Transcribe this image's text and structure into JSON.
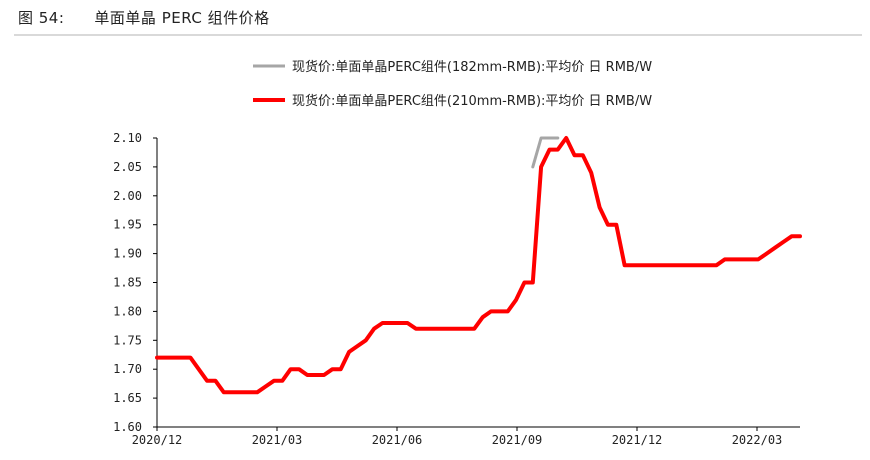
{
  "figure": {
    "number": "图 54:",
    "title": "单面单晶 PERC 组件价格"
  },
  "chart_data": {
    "type": "line",
    "title": "单面单晶 PERC 组件价格",
    "xlabel": "",
    "ylabel": "",
    "ylim": [
      1.6,
      2.1
    ],
    "yticks": [
      "1.60",
      "1.65",
      "1.70",
      "1.75",
      "1.80",
      "1.85",
      "1.90",
      "1.95",
      "2.00",
      "2.05",
      "2.10"
    ],
    "xticks": [
      "2020/12",
      "2021/03",
      "2021/06",
      "2021/09",
      "2021/12",
      "2022/03"
    ],
    "xlim": [
      0,
      77
    ],
    "grid": false,
    "legend_position": "top-right",
    "series": [
      {
        "name": "现货价:单面单晶PERC组件(182mm-RMB):平均价 日 RMB/W",
        "color": "#a6a6a6",
        "x": [
          45,
          46,
          47,
          48
        ],
        "y": [
          2.05,
          2.1,
          2.1,
          2.1
        ]
      },
      {
        "name": "现货价:单面单晶PERC组件(210mm-RMB):平均价 日 RMB/W",
        "color": "#ff0000",
        "x": [
          0,
          4,
          6,
          7,
          8,
          12,
          13,
          14,
          15,
          16,
          17,
          18,
          20,
          21,
          22,
          23,
          24,
          25,
          26,
          27,
          28,
          30,
          31,
          38,
          39,
          40,
          41,
          42,
          43,
          44,
          45,
          46,
          47,
          48,
          49,
          50,
          51,
          52,
          53,
          54,
          55,
          56,
          67,
          68,
          72,
          73,
          74,
          75,
          76,
          77
        ],
        "y": [
          1.72,
          1.72,
          1.68,
          1.68,
          1.66,
          1.66,
          1.67,
          1.68,
          1.68,
          1.7,
          1.7,
          1.69,
          1.69,
          1.7,
          1.7,
          1.73,
          1.74,
          1.75,
          1.77,
          1.78,
          1.78,
          1.78,
          1.77,
          1.77,
          1.79,
          1.8,
          1.8,
          1.8,
          1.82,
          1.85,
          1.85,
          2.05,
          2.08,
          2.08,
          2.1,
          2.07,
          2.07,
          2.04,
          1.98,
          1.95,
          1.95,
          1.88,
          1.88,
          1.89,
          1.89,
          1.9,
          1.91,
          1.92,
          1.93,
          1.93
        ]
      }
    ]
  }
}
